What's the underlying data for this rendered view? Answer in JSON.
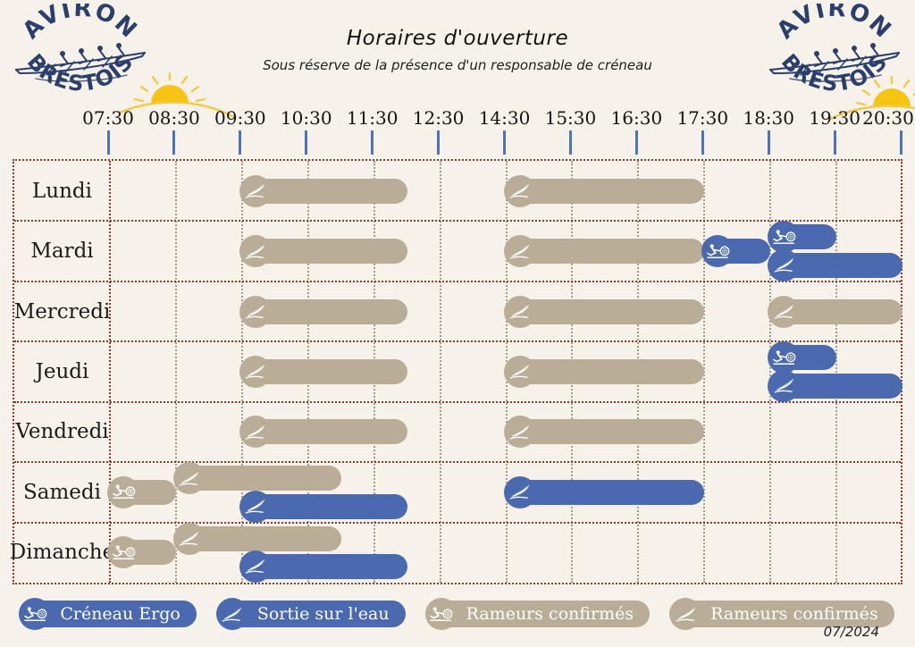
{
  "page": {
    "title": "Horaires d'ouverture",
    "subtitle": "Sous réserve de la présence d'un responsable de créneau",
    "footer_date": "07/2024"
  },
  "logo": {
    "arc_top": "AVIRON",
    "arc_bottom": "BRESTOIS"
  },
  "colors": {
    "background": "#f7f2e9",
    "blue": "#4a69ae",
    "tan": "#b9ad97",
    "navy": "#2a3f6e",
    "tick_blue": "#4e73bd",
    "grid_red": "#8a3a2c",
    "grid_gray": "#a09c8e",
    "sun_yellow": "#f6c412"
  },
  "chart_data": {
    "type": "gantt",
    "title": "Horaires d'ouverture",
    "subtitle": "Sous réserve de la présence d'un responsable de créneau",
    "x_axis": {
      "tick_labels": [
        "07:30",
        "08:30",
        "09:30",
        "10:30",
        "11:30",
        "12:30",
        "14:30",
        "15:30",
        "16:30",
        "17:30",
        "18:30",
        "19:30",
        "20:30"
      ],
      "note": "equal column spacing; axis skips lunch hour between 12:30 and 14:30"
    },
    "rows": [
      "Lundi",
      "Mardi",
      "Mercredi",
      "Jeudi",
      "Vendredi",
      "Samedi",
      "Dimanche"
    ],
    "legend_position": "bottom",
    "activities": {
      "creneau_ergo": {
        "label": "Créneau Ergo",
        "color": "#4a69ae",
        "icon": "ergo"
      },
      "sortie_eau": {
        "label": "Sortie sur l'eau",
        "color": "#4a69ae",
        "icon": "boat"
      },
      "rameurs_confirmes_ergo": {
        "label": "Rameurs confirmés",
        "color": "#b9ad97",
        "icon": "ergo"
      },
      "rameurs_confirmes_eau": {
        "label": "Rameurs confirmés",
        "color": "#b9ad97",
        "icon": "boat"
      }
    },
    "bars": [
      {
        "day": "Lundi",
        "start": "09:30",
        "end": "12:00",
        "activity": "rameurs_confirmes_eau",
        "lane": "center"
      },
      {
        "day": "Lundi",
        "start": "14:30",
        "end": "17:30",
        "activity": "rameurs_confirmes_eau",
        "lane": "center"
      },
      {
        "day": "Mardi",
        "start": "09:30",
        "end": "12:00",
        "activity": "rameurs_confirmes_eau",
        "lane": "center"
      },
      {
        "day": "Mardi",
        "start": "14:30",
        "end": "17:30",
        "activity": "rameurs_confirmes_eau",
        "lane": "center"
      },
      {
        "day": "Mardi",
        "start": "17:30",
        "end": "18:30",
        "activity": "creneau_ergo",
        "lane": "center"
      },
      {
        "day": "Mardi",
        "start": "18:30",
        "end": "19:30",
        "activity": "creneau_ergo",
        "lane": "top"
      },
      {
        "day": "Mardi",
        "start": "18:30",
        "end": "20:30",
        "activity": "sortie_eau",
        "lane": "bottom"
      },
      {
        "day": "Mercredi",
        "start": "09:30",
        "end": "12:00",
        "activity": "rameurs_confirmes_eau",
        "lane": "center"
      },
      {
        "day": "Mercredi",
        "start": "14:30",
        "end": "17:30",
        "activity": "rameurs_confirmes_eau",
        "lane": "center"
      },
      {
        "day": "Mercredi",
        "start": "18:30",
        "end": "20:30",
        "activity": "rameurs_confirmes_eau",
        "lane": "center"
      },
      {
        "day": "Jeudi",
        "start": "09:30",
        "end": "12:00",
        "activity": "rameurs_confirmes_eau",
        "lane": "center"
      },
      {
        "day": "Jeudi",
        "start": "14:30",
        "end": "17:30",
        "activity": "rameurs_confirmes_eau",
        "lane": "center"
      },
      {
        "day": "Jeudi",
        "start": "18:30",
        "end": "19:30",
        "activity": "creneau_ergo",
        "lane": "top"
      },
      {
        "day": "Jeudi",
        "start": "18:30",
        "end": "20:30",
        "activity": "sortie_eau",
        "lane": "bottom"
      },
      {
        "day": "Vendredi",
        "start": "09:30",
        "end": "12:00",
        "activity": "rameurs_confirmes_eau",
        "lane": "center"
      },
      {
        "day": "Vendredi",
        "start": "14:30",
        "end": "17:30",
        "activity": "rameurs_confirmes_eau",
        "lane": "center"
      },
      {
        "day": "Samedi",
        "start": "07:30",
        "end": "08:30",
        "activity": "rameurs_confirmes_ergo",
        "lane": "center"
      },
      {
        "day": "Samedi",
        "start": "08:30",
        "end": "11:00",
        "activity": "rameurs_confirmes_eau",
        "lane": "top"
      },
      {
        "day": "Samedi",
        "start": "09:30",
        "end": "12:00",
        "activity": "sortie_eau",
        "lane": "bottom"
      },
      {
        "day": "Samedi",
        "start": "14:30",
        "end": "17:30",
        "activity": "sortie_eau",
        "lane": "center"
      },
      {
        "day": "Dimanche",
        "start": "07:30",
        "end": "08:30",
        "activity": "rameurs_confirmes_ergo",
        "lane": "center"
      },
      {
        "day": "Dimanche",
        "start": "08:30",
        "end": "11:00",
        "activity": "rameurs_confirmes_eau",
        "lane": "top"
      },
      {
        "day": "Dimanche",
        "start": "09:30",
        "end": "12:00",
        "activity": "sortie_eau",
        "lane": "bottom"
      }
    ]
  },
  "legend": {
    "items": [
      {
        "activity": "creneau_ergo",
        "label": "Créneau Ergo"
      },
      {
        "activity": "sortie_eau",
        "label": "Sortie sur l'eau"
      },
      {
        "activity": "rameurs_confirmes_ergo",
        "label": "Rameurs confirmés"
      },
      {
        "activity": "rameurs_confirmes_eau",
        "label": "Rameurs confirmés"
      }
    ]
  }
}
